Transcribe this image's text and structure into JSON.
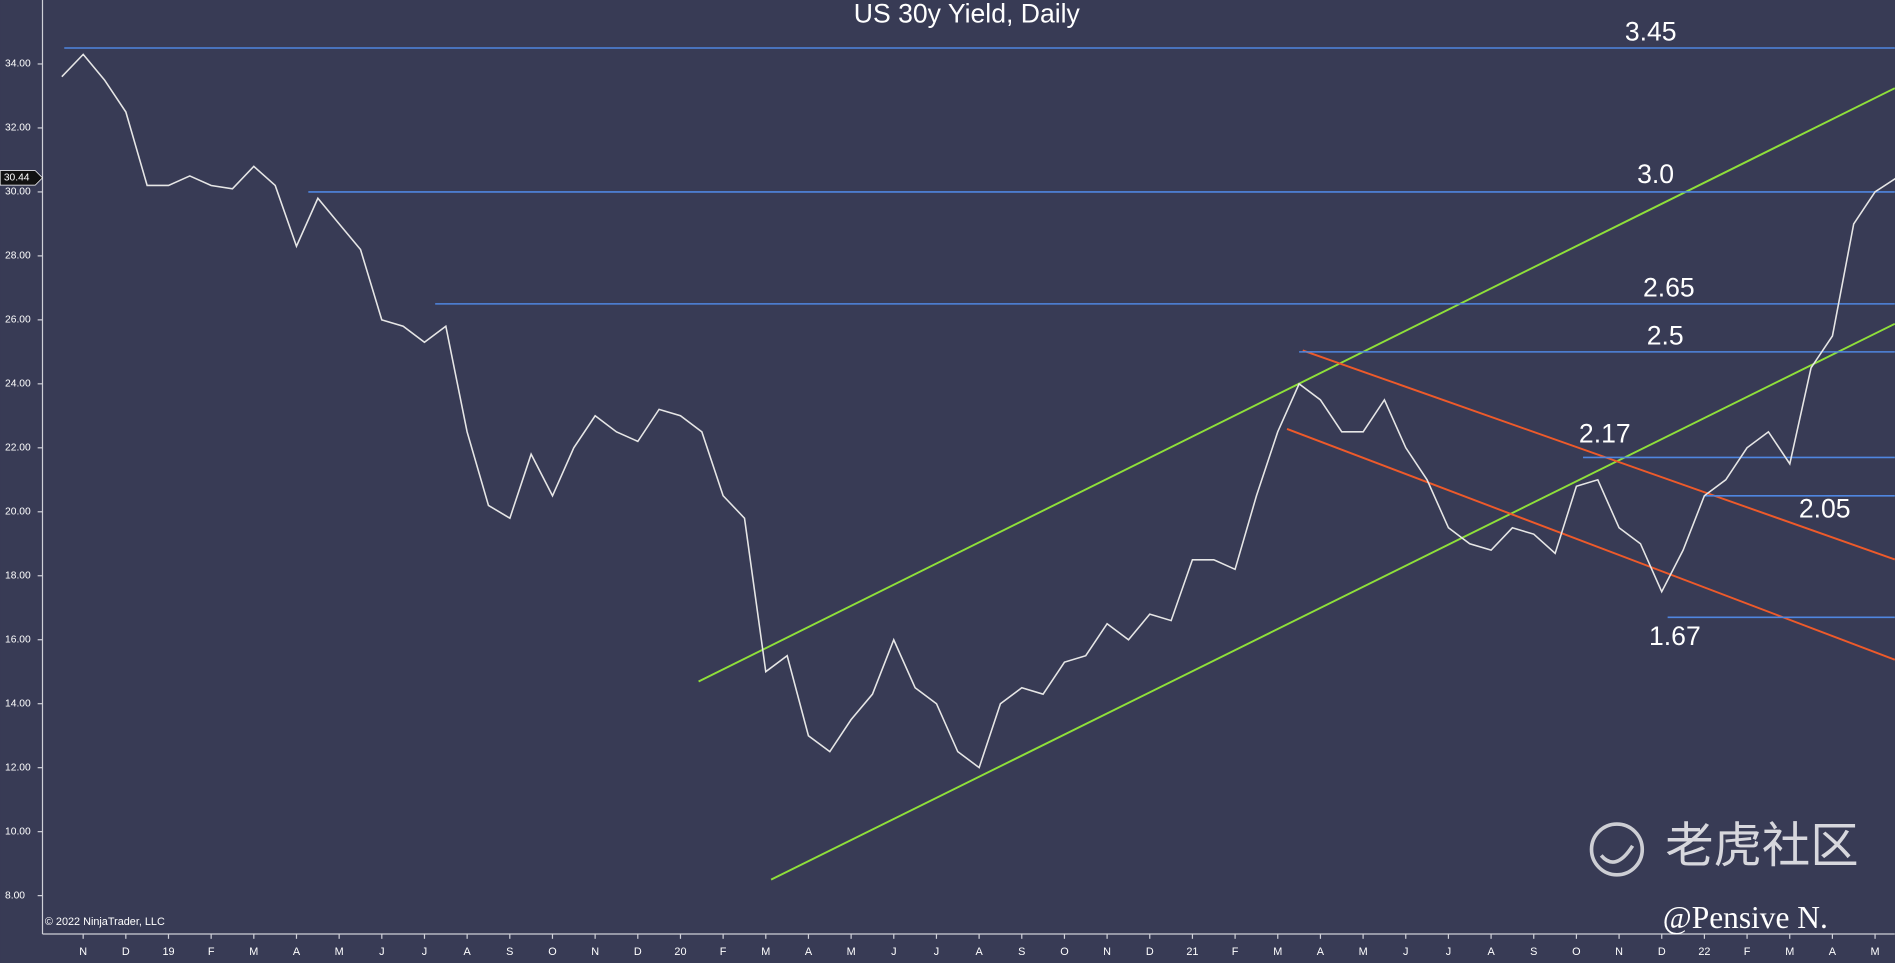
{
  "chart_data": {
    "type": "line",
    "title": "US 30y Yield, Daily",
    "categories": [
      null,
      "N",
      null,
      "D",
      null,
      "19",
      null,
      "F",
      null,
      "M",
      null,
      "A",
      null,
      "M",
      null,
      "J",
      null,
      "J",
      null,
      "A",
      null,
      "S",
      null,
      "O",
      null,
      "N",
      null,
      "D",
      null,
      "20",
      null,
      "F",
      null,
      "M",
      null,
      "A",
      null,
      "M",
      null,
      "J",
      null,
      "J",
      null,
      "A",
      null,
      "S",
      null,
      "O",
      null,
      "N",
      null,
      "D",
      null,
      "21",
      null,
      "F",
      null,
      "M",
      null,
      "A",
      null,
      "M",
      null,
      "J",
      null,
      "J",
      null,
      "A",
      null,
      "S",
      null,
      "O",
      null,
      "N",
      null,
      "D",
      null,
      "22",
      null,
      "F",
      null,
      "M",
      null,
      "A",
      null,
      "M",
      null
    ],
    "values": [
      33.6,
      34.3,
      33.5,
      32.5,
      30.2,
      30.2,
      30.5,
      30.2,
      30.1,
      30.8,
      30.2,
      28.3,
      29.8,
      29.0,
      28.2,
      26.0,
      25.8,
      25.3,
      25.8,
      22.5,
      20.2,
      19.8,
      21.8,
      20.5,
      22.0,
      23.0,
      22.5,
      22.2,
      23.2,
      23.0,
      22.5,
      20.5,
      19.8,
      15.0,
      15.5,
      13.0,
      12.5,
      13.5,
      14.3,
      16.0,
      14.5,
      14.0,
      12.5,
      12.0,
      14.0,
      14.5,
      14.3,
      15.3,
      15.5,
      16.5,
      16.0,
      16.8,
      16.6,
      18.5,
      18.5,
      18.2,
      20.5,
      22.5,
      24.0,
      23.5,
      22.5,
      22.5,
      23.5,
      22.0,
      21.0,
      19.5,
      19.0,
      18.8,
      19.5,
      19.3,
      18.7,
      20.8,
      21.0,
      19.5,
      19.0,
      17.5,
      18.8,
      20.5,
      21.0,
      22.0,
      22.5,
      21.5,
      24.5,
      25.5,
      29.0,
      30.0,
      30.44
    ],
    "color": "#e6e6e6",
    "ylim": [
      6.8,
      36.0
    ],
    "yticks": [
      {
        "value": 8,
        "label": "8.00"
      },
      {
        "value": 10,
        "label": "10.00"
      },
      {
        "value": 12,
        "label": "12.00"
      },
      {
        "value": 14,
        "label": "14.00"
      },
      {
        "value": 16,
        "label": "16.00"
      },
      {
        "value": 18,
        "label": "18.00"
      },
      {
        "value": 20,
        "label": "20.00"
      },
      {
        "value": 22,
        "label": "22.00"
      },
      {
        "value": 24,
        "label": "24.00"
      },
      {
        "value": 26,
        "label": "26.00"
      },
      {
        "value": 28,
        "label": "28.00"
      },
      {
        "value": 30,
        "label": "30.00"
      },
      {
        "value": 32,
        "label": "32.00"
      },
      {
        "value": 34,
        "label": "34.00"
      }
    ],
    "last_value": {
      "value": 30.44,
      "label": "30.44"
    },
    "levels": [
      {
        "value": 34.5,
        "label": "3.45"
      },
      {
        "value": 30,
        "label": "3.0"
      },
      {
        "value": 26.5,
        "label": "2.65"
      },
      {
        "value": 25,
        "label": "2.5"
      },
      {
        "value": 21.7,
        "label": "2.17"
      },
      {
        "value": 20.5,
        "label": "2.05"
      },
      {
        "value": 16.7,
        "label": "1.67"
      }
    ],
    "level_color": "#4f86e0",
    "copyright": "© 2022 NinjaTrader, LLC",
    "watermark": "老虎社区",
    "author": "@Pensive N."
  }
}
